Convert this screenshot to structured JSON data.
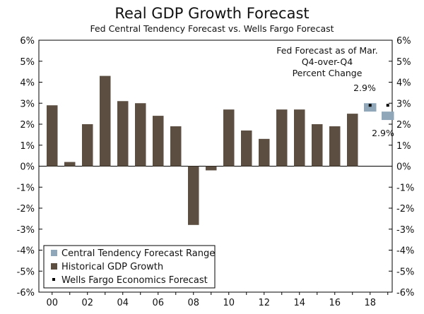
{
  "chart_data": {
    "type": "bar",
    "title": "Real GDP Growth Forecast",
    "subtitle": "Fed Central Tendency Forecast vs. Wells Fargo Forecast",
    "xlabel": "",
    "ylabel": "",
    "ylim": [
      -6,
      6
    ],
    "y_ticks": [
      6,
      5,
      4,
      3,
      2,
      1,
      0,
      -1,
      -2,
      -3,
      -4,
      -5,
      -6
    ],
    "y_tick_labels": [
      "6%",
      "5%",
      "4%",
      "3%",
      "2%",
      "1%",
      "0%",
      "-1%",
      "-2%",
      "-3%",
      "-4%",
      "-5%",
      "-6%"
    ],
    "x_tick_labels": [
      {
        "year": 2000,
        "label": "00"
      },
      {
        "year": 2002,
        "label": "02"
      },
      {
        "year": 2004,
        "label": "04"
      },
      {
        "year": 2006,
        "label": "06"
      },
      {
        "year": 2008,
        "label": "08"
      },
      {
        "year": 2010,
        "label": "10"
      },
      {
        "year": 2012,
        "label": "12"
      },
      {
        "year": 2014,
        "label": "14"
      },
      {
        "year": 2016,
        "label": "16"
      },
      {
        "year": 2018,
        "label": "18"
      }
    ],
    "historical": {
      "name": "Historical GDP Growth",
      "color": "#5c4f42",
      "years": [
        2000,
        2001,
        2002,
        2003,
        2004,
        2005,
        2006,
        2007,
        2008,
        2009,
        2010,
        2011,
        2012,
        2013,
        2014,
        2015,
        2016,
        2017
      ],
      "values": [
        2.9,
        0.2,
        2.0,
        4.3,
        3.1,
        3.0,
        2.4,
        1.9,
        -2.8,
        -0.2,
        2.7,
        1.7,
        1.3,
        2.7,
        2.7,
        2.0,
        1.9,
        2.5
      ]
    },
    "central_tendency": {
      "name": "Central Tendency Forecast Range",
      "color": "#8fa7b8",
      "ranges": [
        {
          "year": 2018,
          "low": 2.6,
          "high": 3.0
        },
        {
          "year": 2019,
          "low": 2.2,
          "high": 2.6
        }
      ]
    },
    "wells_fargo": {
      "name": "Wells Fargo Economics Forecast",
      "color": "#000000",
      "points": [
        {
          "year": 2018,
          "value": 2.9
        },
        {
          "year": 2019,
          "value": 2.9
        }
      ]
    },
    "annotations": {
      "header_lines": [
        "Fed Forecast as of Mar.",
        "Q4-over-Q4",
        "Percent Change"
      ],
      "label_2018": "2.9%",
      "label_2019": "2.9%"
    },
    "legend": {
      "position": "bottom-left",
      "entries": [
        "Central Tendency Forecast Range",
        "Historical GDP Growth",
        "Wells Fargo Economics Forecast"
      ]
    }
  }
}
